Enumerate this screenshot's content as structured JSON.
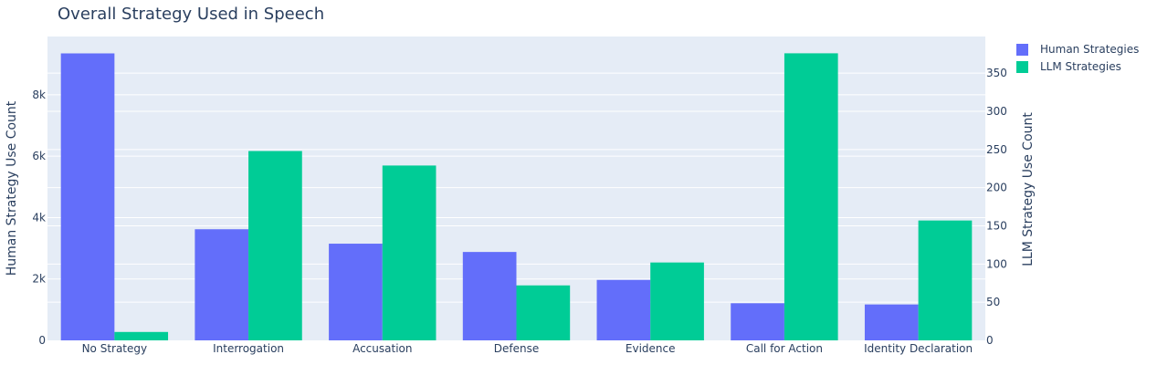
{
  "chart_data": {
    "type": "bar",
    "title": "Overall Strategy Used in Speech",
    "categories": [
      "No Strategy",
      "Interrogation",
      "Accusation",
      "Defense",
      "Evidence",
      "Call for Action",
      "Identity Declaration"
    ],
    "series": [
      {
        "name": "Human Strategies",
        "axis": "left",
        "color": "#636efa",
        "values": [
          9350,
          3620,
          3150,
          2880,
          1970,
          1210,
          1170
        ]
      },
      {
        "name": "LLM Strategies",
        "axis": "right",
        "color": "#00cc96",
        "values": [
          11,
          248,
          229,
          72,
          102,
          376,
          157
        ]
      }
    ],
    "y_left": {
      "label": "Human Strategy Use Count",
      "range": [
        0,
        9900
      ],
      "ticks": [
        0,
        2000,
        4000,
        6000,
        8000
      ],
      "tick_labels": [
        "0",
        "2k",
        "4k",
        "6k",
        "8k"
      ]
    },
    "y_right": {
      "label": "LLM Strategy Use Count",
      "range": [
        0,
        398
      ],
      "ticks": [
        0,
        50,
        100,
        150,
        200,
        250,
        300,
        350
      ],
      "tick_labels": [
        "0",
        "50",
        "100",
        "150",
        "200",
        "250",
        "300",
        "350"
      ]
    },
    "legend_position": "top-right",
    "grid": true,
    "plot_bg": "#e5ecf6"
  }
}
